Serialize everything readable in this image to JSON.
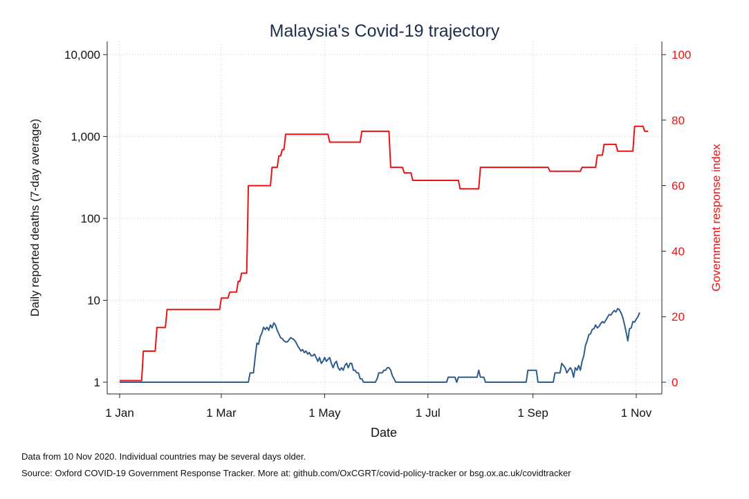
{
  "chart_data": {
    "type": "line",
    "title": "Malaysia's Covid-19 trajectory",
    "xlabel": "Date",
    "ylabel_left": "Daily reported deaths (7-day average)",
    "ylabel_right": "Government response index",
    "x_ticks": [
      {
        "label": "1 Jan",
        "day": 0
      },
      {
        "label": "1 Mar",
        "day": 60
      },
      {
        "label": "1 May",
        "day": 121
      },
      {
        "label": "1 Jul",
        "day": 182
      },
      {
        "label": "1 Sep",
        "day": 244
      },
      {
        "label": "1 Nov",
        "day": 305
      }
    ],
    "y_left": {
      "scale": "log",
      "range": [
        1,
        10000
      ],
      "ticks": [
        1,
        10,
        100,
        1000,
        10000
      ],
      "tick_labels": [
        "1",
        "10",
        "100",
        "1,000",
        "10,000"
      ]
    },
    "y_right": {
      "range": [
        0,
        100
      ],
      "ticks": [
        0,
        20,
        40,
        60,
        80,
        100
      ],
      "tick_labels": [
        "0",
        "20",
        "40",
        "60",
        "80",
        "100"
      ]
    },
    "grid": true,
    "series": [
      {
        "axis": "left",
        "color": "#2d5b8c",
        "points": [
          [
            0,
            1
          ],
          [
            76,
            1
          ],
          [
            77,
            1.3
          ],
          [
            79,
            1.3
          ],
          [
            80,
            2
          ],
          [
            81,
            3
          ],
          [
            82,
            2.9
          ],
          [
            83,
            3.6
          ],
          [
            84,
            4
          ],
          [
            85,
            4.7
          ],
          [
            86,
            4.4
          ],
          [
            87,
            4.7
          ],
          [
            88,
            4.3
          ],
          [
            89,
            5
          ],
          [
            90,
            4.6
          ],
          [
            91,
            5.3
          ],
          [
            92,
            5
          ],
          [
            93,
            4.3
          ],
          [
            94,
            3.9
          ],
          [
            95,
            3.5
          ],
          [
            96,
            3.4
          ],
          [
            97,
            3.2
          ],
          [
            98,
            3.1
          ],
          [
            99,
            3.1
          ],
          [
            100,
            3.3
          ],
          [
            101,
            3.5
          ],
          [
            102,
            3.4
          ],
          [
            103,
            3.3
          ],
          [
            104,
            3.1
          ],
          [
            105,
            2.8
          ],
          [
            106,
            2.6
          ],
          [
            107,
            2.4
          ],
          [
            108,
            2.5
          ],
          [
            109,
            2.3
          ],
          [
            110,
            2.4
          ],
          [
            111,
            2.2
          ],
          [
            112,
            2.3
          ],
          [
            113,
            2.1
          ],
          [
            114,
            2.1
          ],
          [
            115,
            2.2
          ],
          [
            116,
            2
          ],
          [
            117,
            1.8
          ],
          [
            118,
            2
          ],
          [
            119,
            1.7
          ],
          [
            120,
            1.8
          ],
          [
            121,
            2
          ],
          [
            122,
            1.8
          ],
          [
            123,
            1.9
          ],
          [
            124,
            2
          ],
          [
            125,
            1.7
          ],
          [
            126,
            1.5
          ],
          [
            127,
            1.7
          ],
          [
            128,
            1.8
          ],
          [
            129,
            1.5
          ],
          [
            130,
            1.4
          ],
          [
            131,
            1.5
          ],
          [
            132,
            1.4
          ],
          [
            133,
            1.6
          ],
          [
            134,
            1.7
          ],
          [
            135,
            1.5
          ],
          [
            136,
            1.7
          ],
          [
            137,
            1.7
          ],
          [
            138,
            1.4
          ],
          [
            139,
            1.4
          ],
          [
            140,
            1.3
          ],
          [
            141,
            1.3
          ],
          [
            142,
            1.1
          ],
          [
            143,
            1.1
          ],
          [
            144,
            1
          ],
          [
            151,
            1
          ],
          [
            152,
            1.1
          ],
          [
            153,
            1.3
          ],
          [
            155,
            1.3
          ],
          [
            156,
            1.4
          ],
          [
            157,
            1.4
          ],
          [
            158,
            1.5
          ],
          [
            159,
            1.5
          ],
          [
            160,
            1.4
          ],
          [
            161,
            1.2
          ],
          [
            162,
            1.1
          ],
          [
            163,
            1
          ],
          [
            193,
            1
          ],
          [
            194,
            1.15
          ],
          [
            198,
            1.15
          ],
          [
            199,
            1
          ],
          [
            200,
            1.15
          ],
          [
            211,
            1.15
          ],
          [
            212,
            1.4
          ],
          [
            213,
            1.15
          ],
          [
            215,
            1.15
          ],
          [
            216,
            1
          ],
          [
            240,
            1
          ],
          [
            241,
            1.4
          ],
          [
            246,
            1.4
          ],
          [
            247,
            1
          ],
          [
            256,
            1
          ],
          [
            257,
            1.3
          ],
          [
            260,
            1.3
          ],
          [
            261,
            1.7
          ],
          [
            262,
            1.6
          ],
          [
            263,
            1.5
          ],
          [
            264,
            1.3
          ],
          [
            265,
            1.4
          ],
          [
            266,
            1.5
          ],
          [
            267,
            1.4
          ],
          [
            268,
            1.15
          ],
          [
            269,
            1.5
          ],
          [
            270,
            1.4
          ],
          [
            271,
            1.6
          ],
          [
            272,
            1.4
          ],
          [
            273,
            1.8
          ],
          [
            274,
            2.1
          ],
          [
            275,
            2.8
          ],
          [
            276,
            3.2
          ],
          [
            277,
            3.8
          ],
          [
            278,
            3.9
          ],
          [
            279,
            4.4
          ],
          [
            280,
            4.5
          ],
          [
            281,
            5
          ],
          [
            282,
            4.6
          ],
          [
            283,
            4.8
          ],
          [
            284,
            5.2
          ],
          [
            285,
            5.5
          ],
          [
            286,
            5.3
          ],
          [
            287,
            5.7
          ],
          [
            288,
            6.2
          ],
          [
            289,
            6.7
          ],
          [
            290,
            6.6
          ],
          [
            291,
            7.1
          ],
          [
            292,
            7.5
          ],
          [
            293,
            7.2
          ],
          [
            294,
            7.9
          ],
          [
            295,
            7.7
          ],
          [
            296,
            7
          ],
          [
            297,
            6.2
          ],
          [
            298,
            5.1
          ],
          [
            299,
            4.1
          ],
          [
            300,
            3.2
          ],
          [
            301,
            4.5
          ],
          [
            302,
            4.6
          ],
          [
            303,
            5.5
          ],
          [
            304,
            5.4
          ],
          [
            305,
            5.9
          ],
          [
            306,
            6.3
          ],
          [
            307,
            7.1
          ]
        ]
      },
      {
        "axis": "right",
        "color": "#ee1111",
        "points": [
          [
            0,
            0.5
          ],
          [
            13,
            0.5
          ],
          [
            14,
            9.5
          ],
          [
            21,
            9.5
          ],
          [
            22,
            16.7
          ],
          [
            27,
            16.7
          ],
          [
            28,
            22.2
          ],
          [
            59,
            22.2
          ],
          [
            60,
            25.7
          ],
          [
            64,
            25.7
          ],
          [
            65,
            27.5
          ],
          [
            69,
            27.5
          ],
          [
            70,
            30.8
          ],
          [
            71,
            30.8
          ],
          [
            72,
            33.3
          ],
          [
            75,
            33.3
          ],
          [
            76,
            60
          ],
          [
            89,
            60
          ],
          [
            90,
            65.6
          ],
          [
            93,
            65.6
          ],
          [
            94,
            69.1
          ],
          [
            95,
            69.1
          ],
          [
            96,
            71
          ],
          [
            97,
            71
          ],
          [
            98,
            75.7
          ],
          [
            123,
            75.7
          ],
          [
            124,
            73.3
          ],
          [
            142,
            73.3
          ],
          [
            143,
            76.6
          ],
          [
            159,
            76.6
          ],
          [
            160,
            65.6
          ],
          [
            167,
            65.6
          ],
          [
            168,
            63.9
          ],
          [
            172,
            63.9
          ],
          [
            173,
            61.6
          ],
          [
            200,
            61.6
          ],
          [
            201,
            59
          ],
          [
            212,
            59
          ],
          [
            213,
            65.6
          ],
          [
            253,
            65.6
          ],
          [
            254,
            64.4
          ],
          [
            272,
            64.4
          ],
          [
            273,
            65.6
          ],
          [
            281,
            65.6
          ],
          [
            282,
            69.3
          ],
          [
            285,
            69.3
          ],
          [
            286,
            72.6
          ],
          [
            293,
            72.6
          ],
          [
            294,
            70.5
          ],
          [
            303,
            70.5
          ],
          [
            304,
            78.1
          ],
          [
            309,
            78.1
          ],
          [
            310,
            76.6
          ],
          [
            311,
            76.6
          ],
          [
            312,
            76.6
          ]
        ]
      }
    ]
  },
  "footnotes": {
    "line1": "Data from 10 Nov 2020. Individual countries may be several days older.",
    "line2": "Source: Oxford COVID-19 Government Response Tracker. More at: github.com/OxCGRT/covid-policy-tracker or bsg.ox.ac.uk/covidtracker"
  }
}
